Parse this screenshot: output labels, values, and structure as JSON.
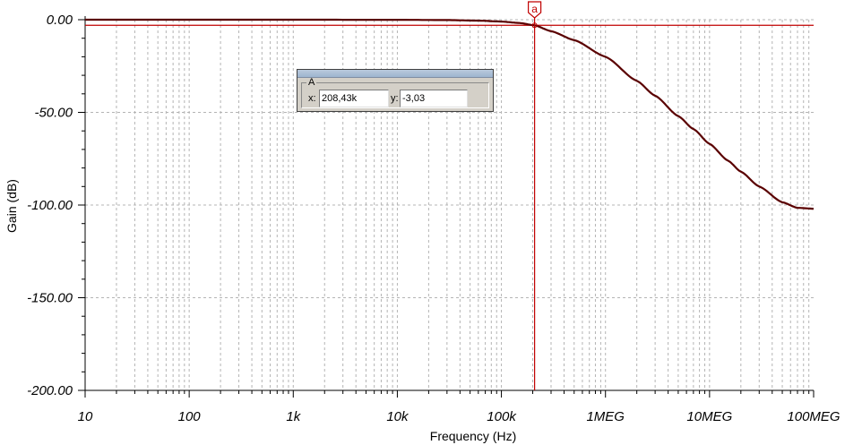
{
  "chart_data": {
    "type": "line",
    "xlabel": "Frequency (Hz)",
    "ylabel": "Gain (dB)",
    "xscale": "log",
    "xlim": [
      10,
      100000000
    ],
    "ylim": [
      -200,
      0
    ],
    "grid": true,
    "x_tick_labels": [
      "10",
      "100",
      "1k",
      "10k",
      "100k",
      "1MEG",
      "10MEG",
      "100MEG"
    ],
    "y_tick_labels": [
      "0.00",
      "-50.00",
      "-100.00",
      "-150.00",
      "-200.00"
    ],
    "series": [
      {
        "color": "#5a0000",
        "x": [
          10,
          1000,
          10000,
          30000,
          60000,
          100000,
          150000,
          208430,
          300000,
          500000,
          1000000,
          2000000,
          3000000,
          5000000,
          7000000,
          10000000,
          15000000,
          20000000,
          30000000,
          50000000,
          70000000,
          100000000
        ],
        "y": [
          0,
          0,
          -0.05,
          -0.2,
          -0.5,
          -1.0,
          -1.8,
          -3.03,
          -6.2,
          -11.0,
          -20.0,
          -33.0,
          -41.0,
          -52.0,
          -59.0,
          -67.0,
          -76.0,
          -82.0,
          -90.0,
          -98.5,
          -101.5,
          -102.0
        ]
      }
    ],
    "reference_line_y": -3.03,
    "cursor": {
      "marker": "a",
      "x": 208430,
      "y": -3.03
    }
  },
  "cursor_panel": {
    "group_label": "A",
    "x_label": "x:",
    "x_value": "208,43k",
    "y_label": "y:",
    "y_value": "-3,03"
  },
  "colors": {
    "trace": "#5a0000",
    "cursor": "#c00000",
    "grid": "#b4b4b4"
  }
}
